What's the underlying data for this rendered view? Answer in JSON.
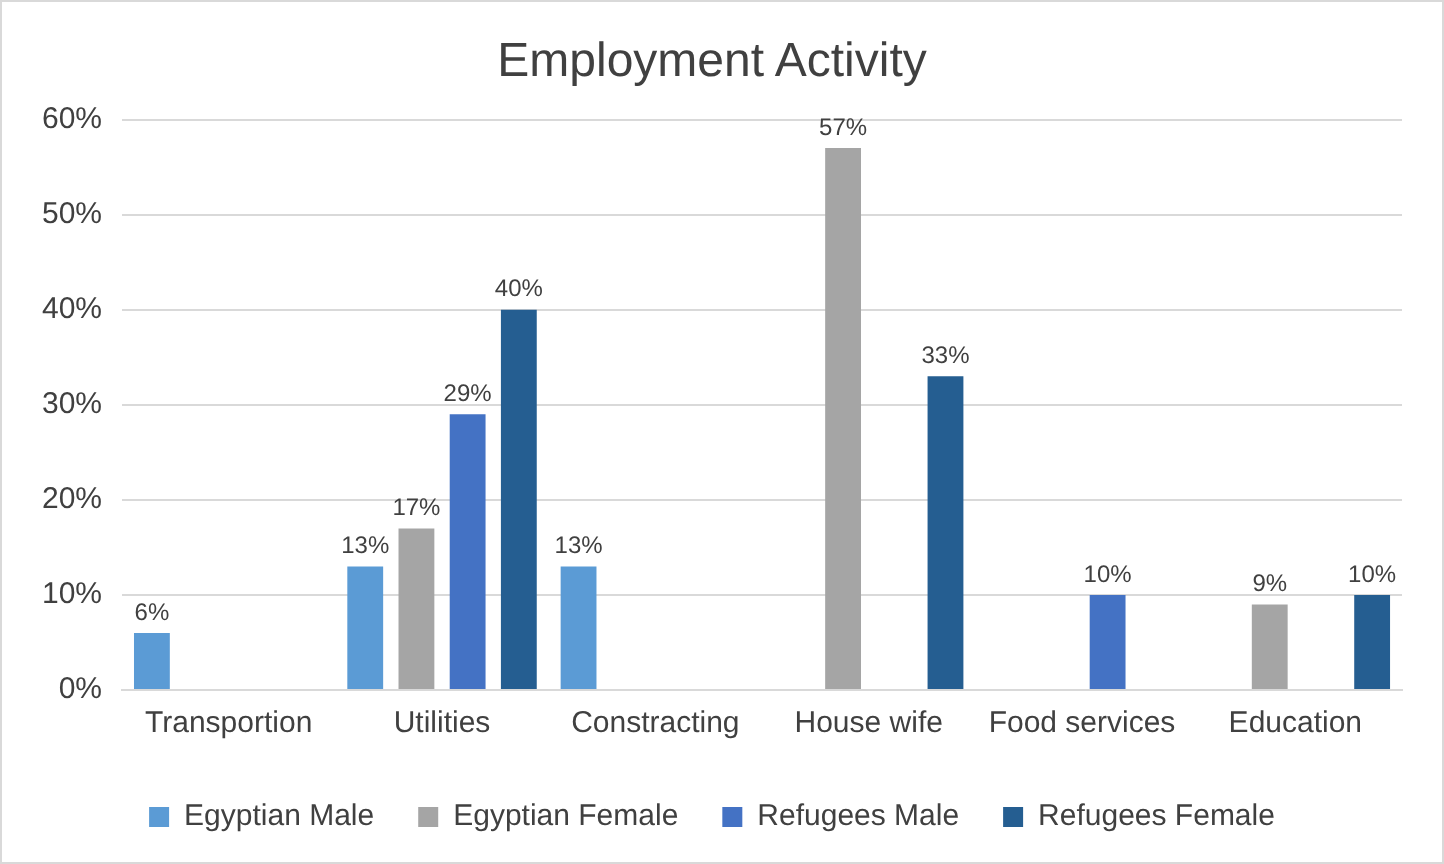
{
  "chart_data": {
    "type": "bar",
    "title": "Employment Activity",
    "categories": [
      "Transportion",
      "Utilities",
      "Constracting",
      "House wife",
      "Food services",
      "Education"
    ],
    "series": [
      {
        "name": "Egyptian Male",
        "color": "#5b9bd5",
        "values": [
          6,
          13,
          13,
          null,
          null,
          null
        ],
        "value_labels": [
          "6%",
          "13%",
          "13%",
          null,
          null,
          null
        ]
      },
      {
        "name": "Egyptian Female",
        "color": "#a5a5a5",
        "values": [
          null,
          17,
          null,
          57,
          null,
          9
        ],
        "value_labels": [
          null,
          "17%",
          null,
          "57%",
          null,
          "9%"
        ]
      },
      {
        "name": "Refugees Male",
        "color": "#4472c4",
        "values": [
          null,
          29,
          null,
          null,
          10,
          null
        ],
        "value_labels": [
          null,
          "29%",
          null,
          null,
          "10%",
          null
        ]
      },
      {
        "name": "Refugees Female",
        "color": "#255e91",
        "values": [
          null,
          40,
          null,
          33,
          null,
          10
        ],
        "value_labels": [
          null,
          "40%",
          null,
          "33%",
          null,
          "10%"
        ]
      }
    ],
    "ylim": [
      0,
      60
    ],
    "yticks": [
      {
        "value": 0,
        "label": "0%"
      },
      {
        "value": 10,
        "label": "10%"
      },
      {
        "value": 20,
        "label": "20%"
      },
      {
        "value": 30,
        "label": "30%"
      },
      {
        "value": 40,
        "label": "40%"
      },
      {
        "value": 50,
        "label": "50%"
      },
      {
        "value": 60,
        "label": "60%"
      }
    ],
    "grid": "y",
    "legend": "bottom"
  }
}
